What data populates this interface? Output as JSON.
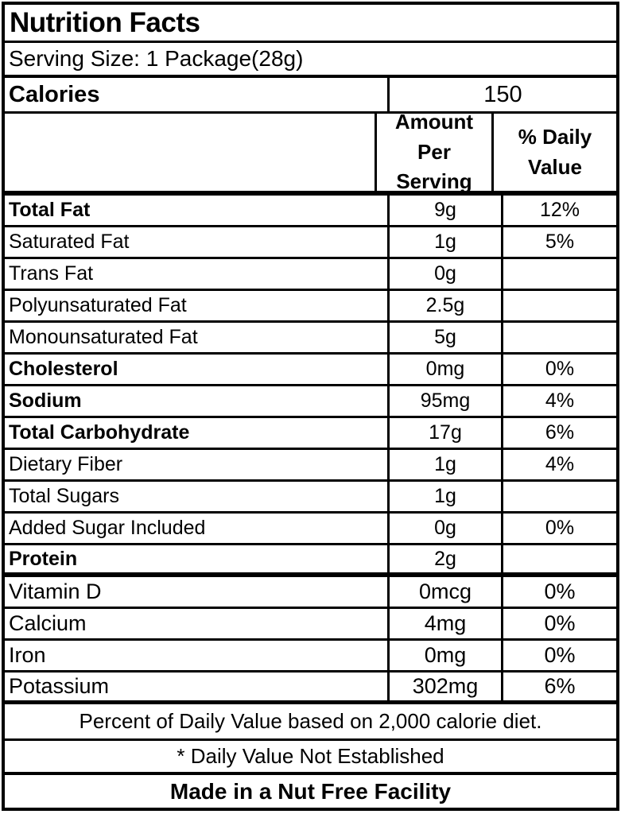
{
  "title": "Nutrition Facts",
  "serving_size": "Serving Size: 1 Package(28g)",
  "calories": {
    "label": "Calories",
    "value": "150"
  },
  "columns": {
    "amount_header": "Amount Per Serving",
    "daily_value_header": "% Daily Value"
  },
  "nutrients": [
    {
      "label": "Total Fat",
      "amount": "9g",
      "daily_value": "12%",
      "bold": true
    },
    {
      "label": "Saturated Fat",
      "amount": "1g",
      "daily_value": "5%",
      "bold": false
    },
    {
      "label": "Trans Fat",
      "amount": "0g",
      "daily_value": "",
      "bold": false
    },
    {
      "label": "Polyunsaturated Fat",
      "amount": "2.5g",
      "daily_value": "",
      "bold": false
    },
    {
      "label": "Monounsaturated Fat",
      "amount": "5g",
      "daily_value": "",
      "bold": false
    },
    {
      "label": "Cholesterol",
      "amount": "0mg",
      "daily_value": "0%",
      "bold": true
    },
    {
      "label": "Sodium",
      "amount": "95mg",
      "daily_value": "4%",
      "bold": true
    },
    {
      "label": "Total Carbohydrate",
      "amount": "17g",
      "daily_value": "6%",
      "bold": true
    },
    {
      "label": "Dietary Fiber",
      "amount": "1g",
      "daily_value": "4%",
      "bold": false
    },
    {
      "label": "Total Sugars",
      "amount": "1g",
      "daily_value": "",
      "bold": false
    },
    {
      "label": "Added Sugar Included",
      "amount": "0g",
      "daily_value": "0%",
      "bold": false
    },
    {
      "label": "Protein",
      "amount": "2g",
      "daily_value": "",
      "bold": true
    }
  ],
  "vitamins": [
    {
      "label": "Vitamin D",
      "amount": "0mcg",
      "daily_value": "0%"
    },
    {
      "label": "Calcium",
      "amount": "4mg",
      "daily_value": "0%"
    },
    {
      "label": "Iron",
      "amount": "0mg",
      "daily_value": "0%"
    },
    {
      "label": "Potassium",
      "amount": "302mg",
      "daily_value": "6%"
    }
  ],
  "footnotes": [
    "Percent of Daily Value based on 2,000 calorie diet.",
    "* Daily Value Not Established",
    "Made in a Nut Free Facility"
  ],
  "colors": {
    "border": "#000000",
    "background": "#ffffff",
    "text": "#000000"
  }
}
